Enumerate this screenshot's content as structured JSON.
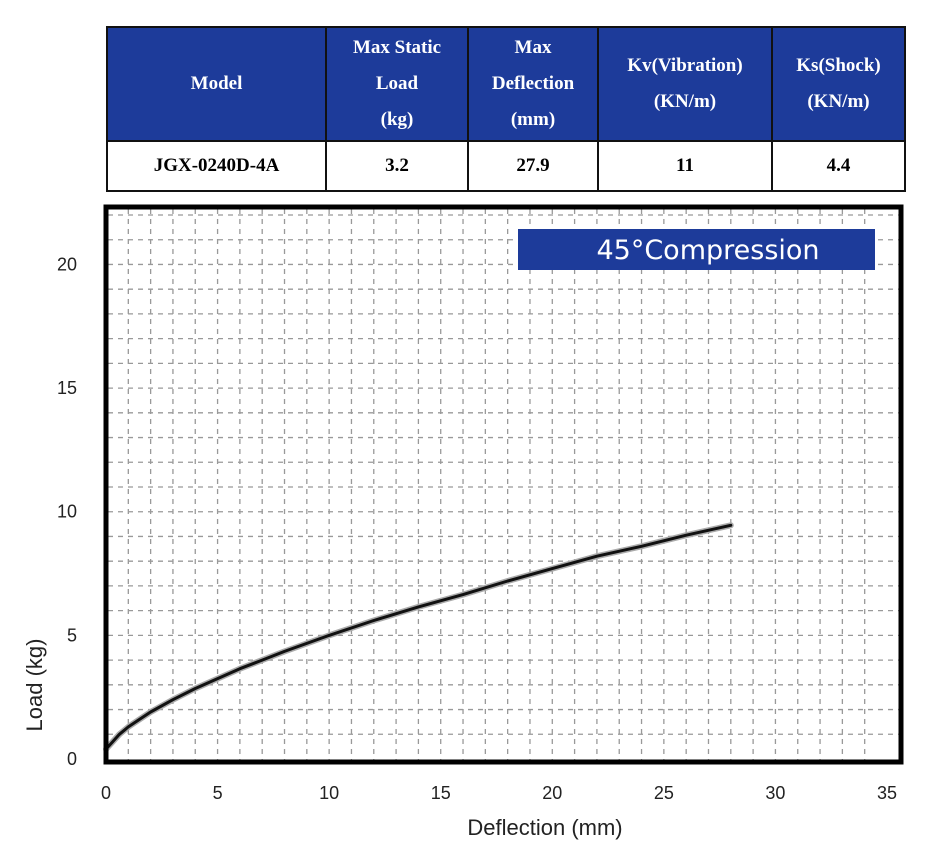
{
  "spec_table": {
    "headers": [
      [
        "Model"
      ],
      [
        "Max Static",
        "Load",
        "(kg)"
      ],
      [
        "Max",
        "Deflection",
        "(mm)"
      ],
      [
        "Kv(Vibration)",
        "(KN/m)"
      ],
      [
        "Ks(Shock)",
        "(KN/m)"
      ]
    ],
    "row": [
      "JGX-0240D-4A",
      "3.2",
      "27.9",
      "11",
      "4.4"
    ]
  },
  "chart_data": {
    "type": "line",
    "title": "",
    "legend_label": "45°Compression",
    "legend_position": "top-right",
    "xlabel": "Deflection (mm)",
    "ylabel": "Load (kg)",
    "xlim": [
      0,
      35
    ],
    "ylim": [
      0,
      22
    ],
    "x_ticks": [
      0,
      5,
      10,
      15,
      20,
      25,
      30,
      35
    ],
    "y_ticks": [
      0,
      5,
      10,
      15,
      20
    ],
    "grid": true,
    "colors": {
      "line": "#111111",
      "legend_bg": "#1d3b9a",
      "frame": "#000000",
      "grid": "#999999"
    },
    "series": [
      {
        "x": [
          0,
          0.3,
          0.6,
          1,
          1.5,
          2,
          3,
          4,
          5,
          6,
          7,
          8,
          10,
          12,
          14,
          16,
          18,
          20,
          22,
          24,
          26,
          28
        ],
        "y": [
          0.4,
          0.7,
          1.0,
          1.3,
          1.6,
          1.9,
          2.4,
          2.85,
          3.25,
          3.65,
          4.0,
          4.35,
          5.0,
          5.6,
          6.15,
          6.65,
          7.2,
          7.7,
          8.2,
          8.6,
          9.05,
          9.45
        ]
      }
    ]
  }
}
